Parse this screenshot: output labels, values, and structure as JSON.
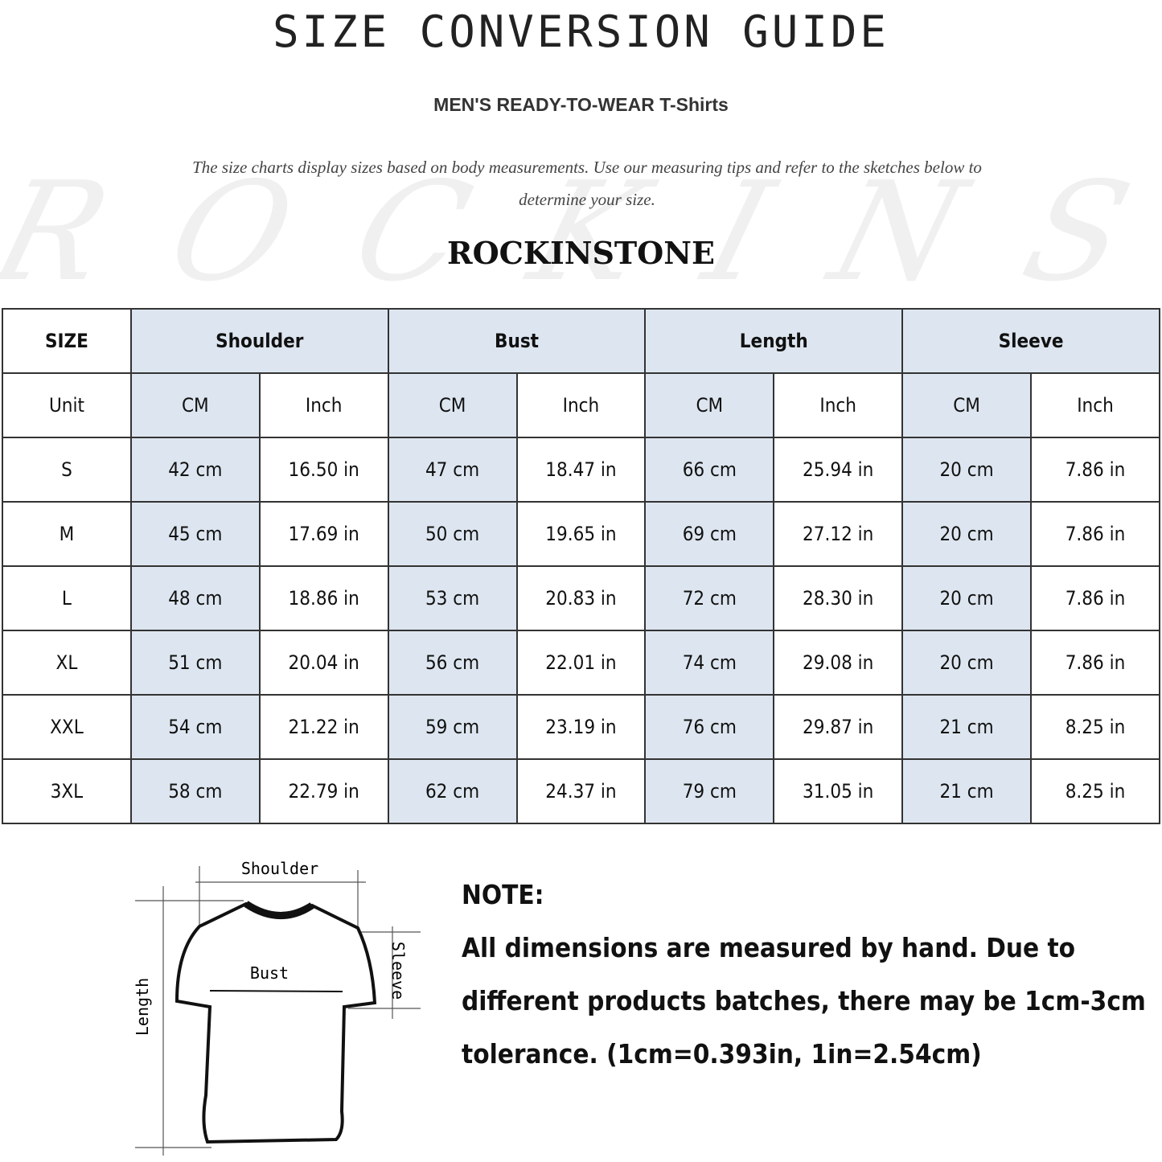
{
  "header": {
    "title": "SIZE CONVERSION GUIDE",
    "subtitle": "MEN'S READY-TO-WEAR T-Shirts",
    "description": "The size charts display sizes based on body measurements. Use our measuring tips and refer to the sketches below to determine your size.",
    "watermark": "ROCKINSTONE",
    "brand": "ROCKINSTONE"
  },
  "colors": {
    "highlight": "#dde6f0",
    "border": "#333333"
  },
  "table": {
    "size_label": "SIZE",
    "unit_label": "Unit",
    "groups": [
      "Shoulder",
      "Bust",
      "Length",
      "Sleeve"
    ],
    "units": [
      "CM",
      "Inch"
    ],
    "rows": [
      {
        "size": "S",
        "values": [
          "42 cm",
          "16.50 in",
          "47 cm",
          "18.47 in",
          "66 cm",
          "25.94 in",
          "20 cm",
          "7.86 in"
        ]
      },
      {
        "size": "M",
        "values": [
          "45 cm",
          "17.69 in",
          "50 cm",
          "19.65 in",
          "69 cm",
          "27.12 in",
          "20 cm",
          "7.86 in"
        ]
      },
      {
        "size": "L",
        "values": [
          "48 cm",
          "18.86 in",
          "53 cm",
          "20.83 in",
          "72 cm",
          "28.30 in",
          "20 cm",
          "7.86 in"
        ]
      },
      {
        "size": "XL",
        "values": [
          "51 cm",
          "20.04 in",
          "56 cm",
          "22.01 in",
          "74 cm",
          "29.08 in",
          "20 cm",
          "7.86 in"
        ]
      },
      {
        "size": "XXL",
        "values": [
          "54 cm",
          "21.22 in",
          "59 cm",
          "23.19 in",
          "76 cm",
          "29.87 in",
          "21 cm",
          "8.25 in"
        ]
      },
      {
        "size": "3XL",
        "values": [
          "58 cm",
          "22.79 in",
          "62 cm",
          "24.37 in",
          "79 cm",
          "31.05 in",
          "21 cm",
          "8.25 in"
        ]
      }
    ]
  },
  "sketch": {
    "shoulder": "Shoulder",
    "bust": "Bust",
    "sleeve": "Sleeve",
    "length": "Length"
  },
  "note": {
    "heading": "NOTE:",
    "body": "All dimensions are measured by hand. Due to different products batches, there may be 1cm-3cm tolerance. (1cm=0.393in, 1in=2.54cm)"
  }
}
